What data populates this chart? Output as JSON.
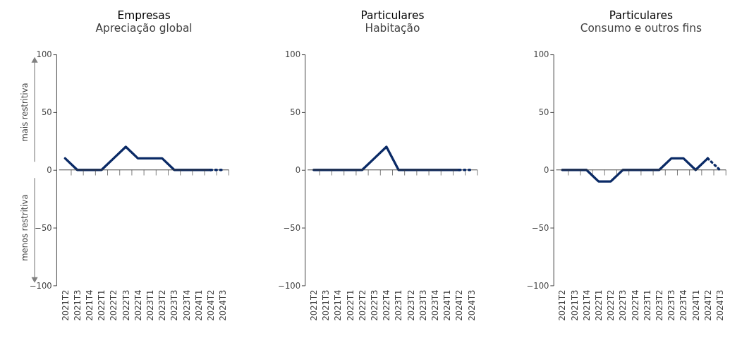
{
  "chart_data": [
    {
      "type": "line",
      "title": "Empresas",
      "subtitle": "Apreciação global",
      "categories": [
        "2021T2",
        "2021T3",
        "2021T4",
        "2022T1",
        "2022T2",
        "2022T3",
        "2022T4",
        "2023T1",
        "2023T2",
        "2023T3",
        "2023T4",
        "2024T1",
        "2024T2",
        "2024T3"
      ],
      "series": [
        {
          "color": "#0a2a66",
          "values": [
            10,
            0,
            0,
            0,
            10,
            20,
            10,
            10,
            10,
            0,
            0,
            0,
            0,
            null
          ]
        },
        {
          "color": "#0a2a66",
          "line_style": "dotted",
          "values": [
            null,
            null,
            null,
            null,
            null,
            null,
            null,
            null,
            null,
            null,
            null,
            null,
            0,
            0
          ]
        }
      ],
      "ylim": [
        -100,
        100
      ],
      "yticks": [
        -100,
        -50,
        0,
        50,
        100
      ],
      "grid": false,
      "ref_lines": [
        {
          "axis": "y",
          "value": 0,
          "color": "#404040"
        }
      ],
      "annotations": [
        "mais restritiva",
        "menos restritiva"
      ]
    },
    {
      "type": "line",
      "title": "Particulares",
      "subtitle": "Habitação",
      "categories": [
        "2021T2",
        "2021T3",
        "2021T4",
        "2022T1",
        "2022T2",
        "2022T3",
        "2022T4",
        "2023T1",
        "2023T2",
        "2023T3",
        "2023T4",
        "2024T1",
        "2024T2",
        "2024T3"
      ],
      "series": [
        {
          "color": "#0a2a66",
          "values": [
            0,
            0,
            0,
            0,
            0,
            10,
            20,
            0,
            0,
            0,
            0,
            0,
            0,
            null
          ]
        },
        {
          "color": "#0a2a66",
          "line_style": "dotted",
          "values": [
            null,
            null,
            null,
            null,
            null,
            null,
            null,
            null,
            null,
            null,
            null,
            null,
            0,
            0
          ]
        }
      ],
      "ylim": [
        -100,
        100
      ],
      "yticks": [
        -100,
        -50,
        0,
        50,
        100
      ],
      "grid": false,
      "ref_lines": [
        {
          "axis": "y",
          "value": 0,
          "color": "#404040"
        }
      ]
    },
    {
      "type": "line",
      "title": "Particulares",
      "subtitle": "Consumo e outros fins",
      "categories": [
        "2021T2",
        "2021T3",
        "2021T4",
        "2022T1",
        "2022T2",
        "2022T3",
        "2022T4",
        "2023T1",
        "2023T2",
        "2023T3",
        "2023T4",
        "2024T1",
        "2024T2",
        "2024T3"
      ],
      "series": [
        {
          "color": "#0a2a66",
          "values": [
            0,
            0,
            0,
            -10,
            -10,
            0,
            0,
            0,
            0,
            10,
            10,
            0,
            10,
            null
          ]
        },
        {
          "color": "#0a2a66",
          "line_style": "dotted",
          "values": [
            null,
            null,
            null,
            null,
            null,
            null,
            null,
            null,
            null,
            null,
            null,
            null,
            10,
            0
          ]
        }
      ],
      "ylim": [
        -100,
        100
      ],
      "yticks": [
        -100,
        -50,
        0,
        50,
        100
      ],
      "grid": false,
      "ref_lines": [
        {
          "axis": "y",
          "value": 0,
          "color": "#404040"
        }
      ]
    }
  ]
}
